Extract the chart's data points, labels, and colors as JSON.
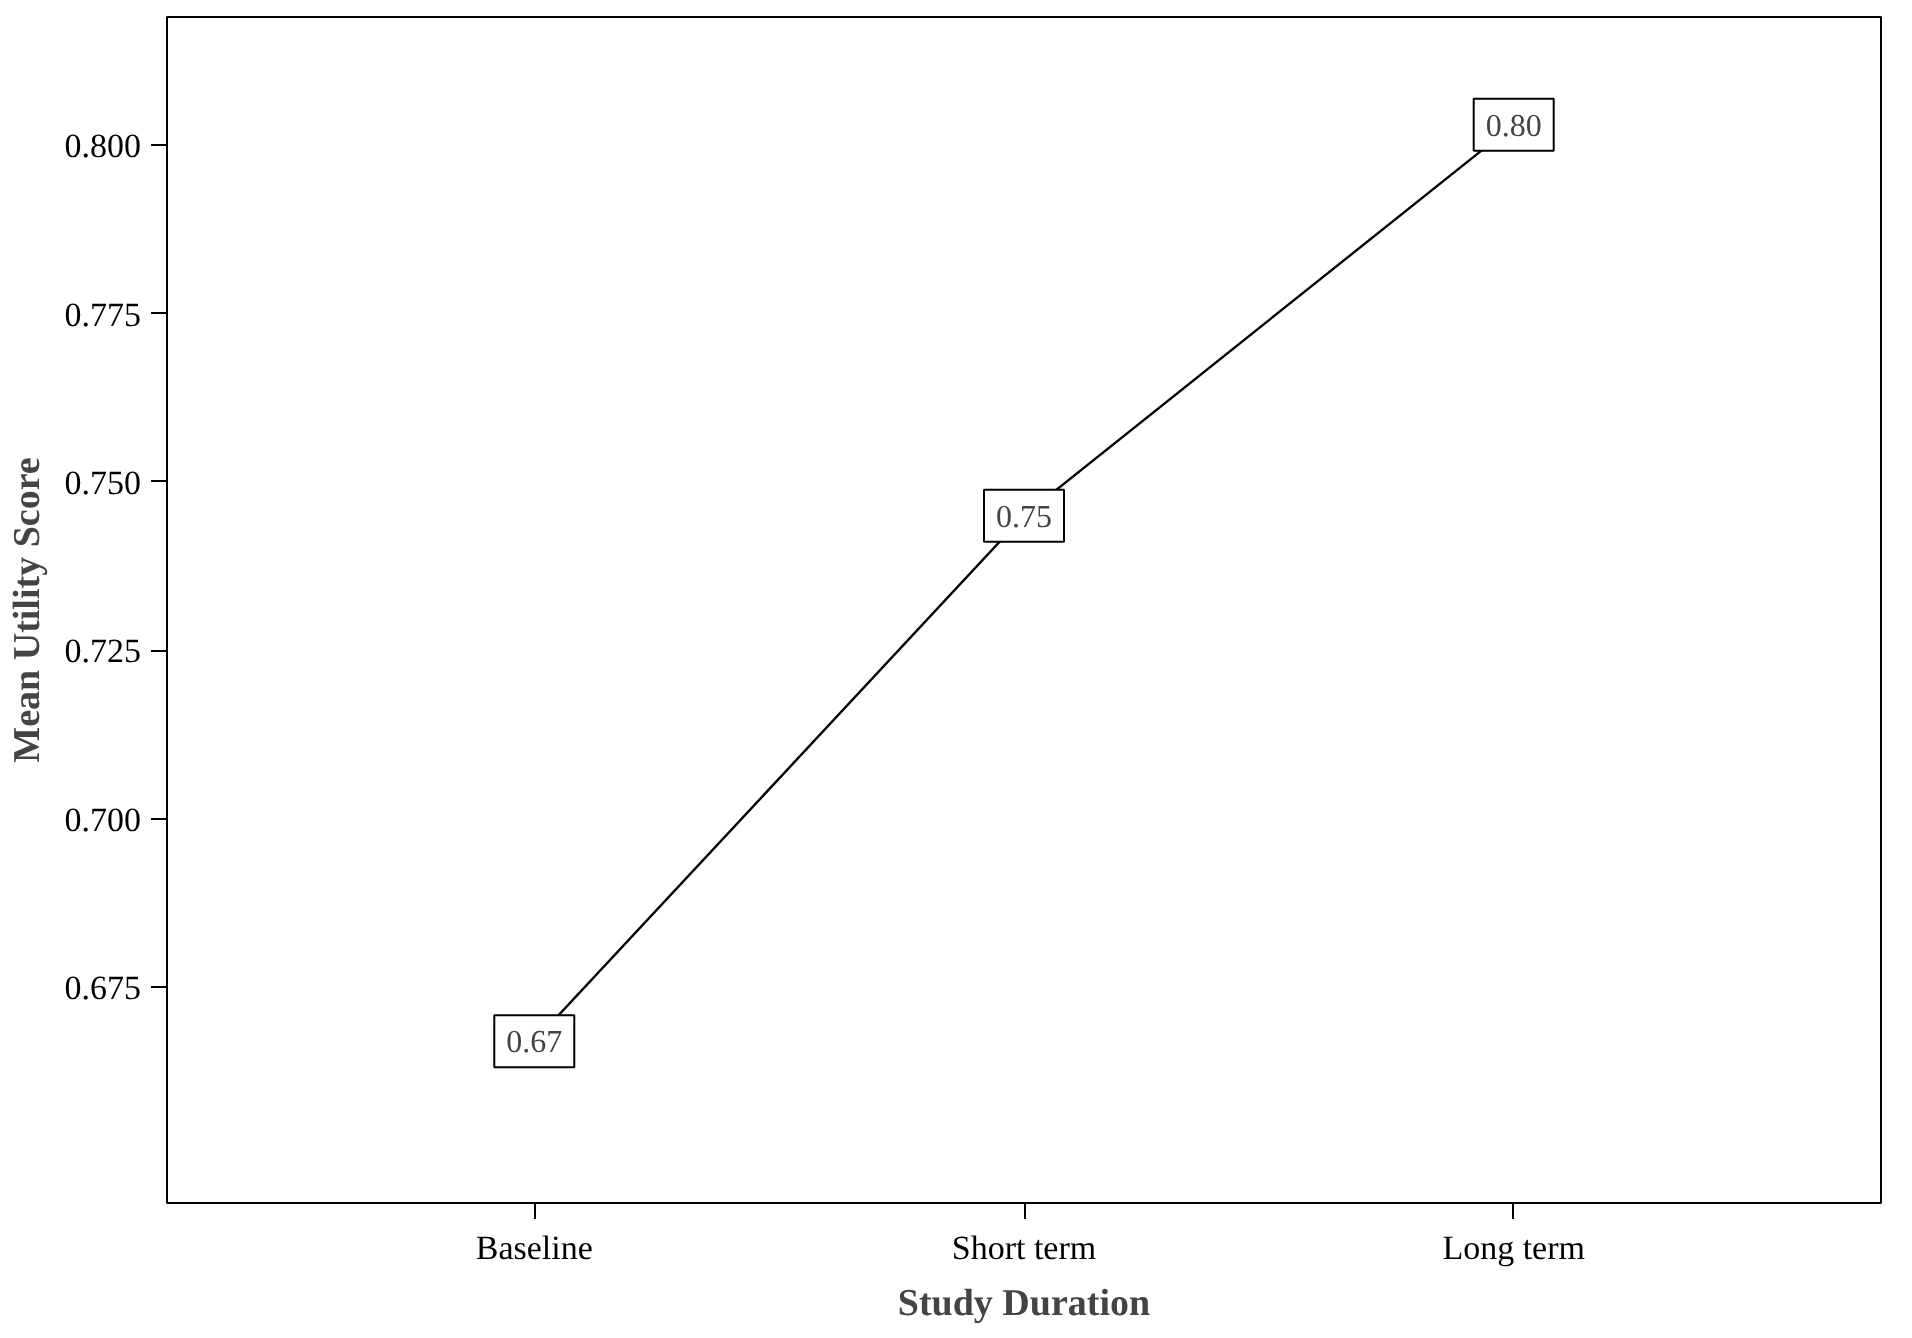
{
  "chart_data": {
    "type": "line",
    "xlabel": "Study Duration",
    "ylabel": "Mean Utility Score",
    "categories": [
      "Baseline",
      "Short term",
      "Long term"
    ],
    "values": [
      0.667,
      0.745,
      0.803
    ],
    "value_labels": [
      "0.67",
      "0.75",
      "0.80"
    ],
    "color": "#000000",
    "ylim": [
      0.643,
      0.819
    ],
    "yticks": [
      {
        "value": 0.675,
        "label": "0.675"
      },
      {
        "value": 0.7,
        "label": "0.700"
      },
      {
        "value": 0.725,
        "label": "0.725"
      },
      {
        "value": 0.75,
        "label": "0.750"
      },
      {
        "value": 0.775,
        "label": "0.775"
      },
      {
        "value": 0.8,
        "label": "0.800"
      }
    ],
    "grid": false,
    "marker": "square",
    "line_style": "solid"
  }
}
